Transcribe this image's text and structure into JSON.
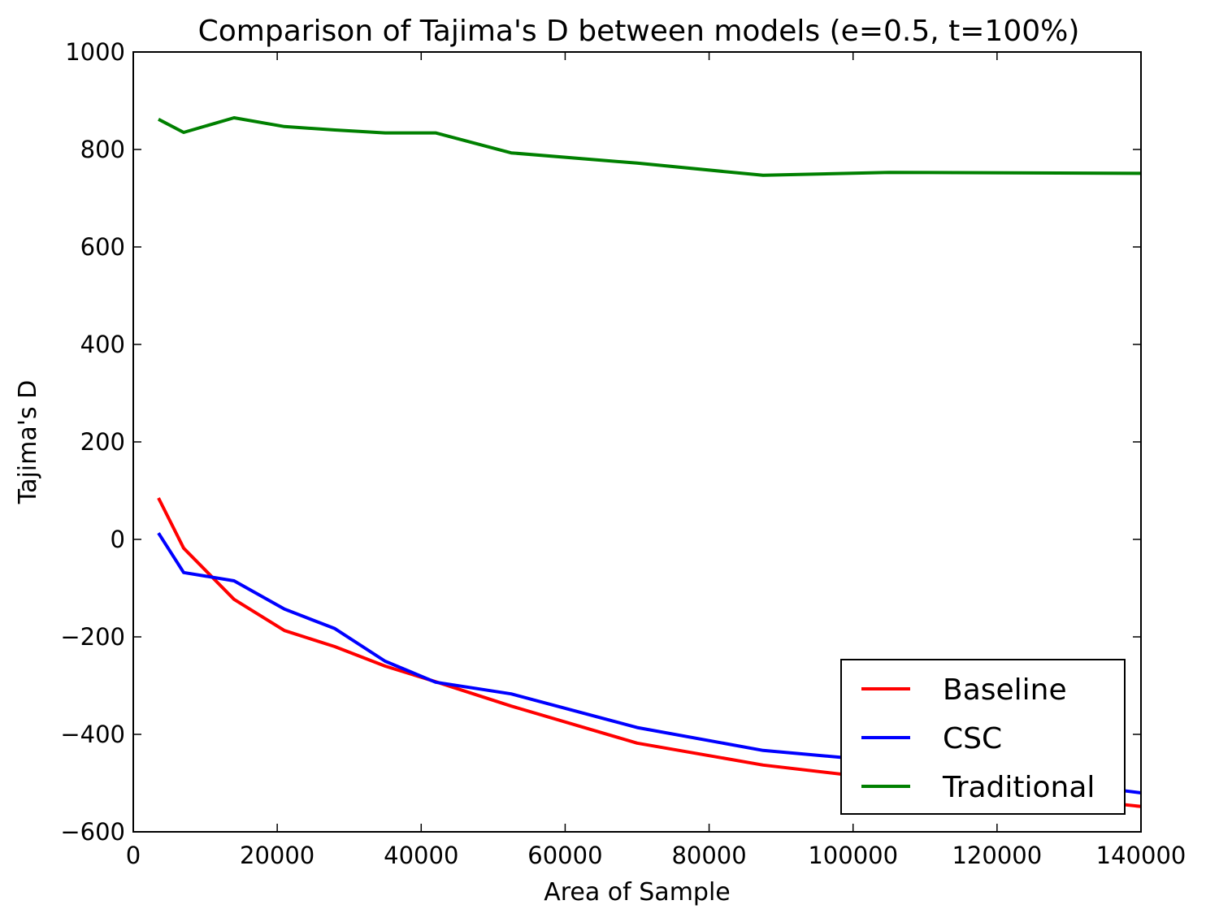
{
  "chart_data": {
    "type": "line",
    "title": "Comparison of Tajima's D between models (e=0.5, t=100%)",
    "xlabel": "Area of Sample",
    "ylabel": "Tajima's D",
    "xlim": [
      0,
      140000
    ],
    "ylim": [
      -600,
      1000
    ],
    "xticks": [
      0,
      20000,
      40000,
      60000,
      80000,
      100000,
      120000,
      140000
    ],
    "xtick_labels": [
      "0",
      "20000",
      "40000",
      "60000",
      "80000",
      "100000",
      "120000",
      "140000"
    ],
    "yticks": [
      -600,
      -400,
      -200,
      0,
      200,
      400,
      600,
      800,
      1000
    ],
    "ytick_labels": [
      "−600",
      "−400",
      "−200",
      "0",
      "200",
      "400",
      "600",
      "800",
      "1000"
    ],
    "grid": false,
    "legend_position": "lower-right",
    "series": [
      {
        "name": "Baseline",
        "color": "#ff0000",
        "x": [
          3500,
          7000,
          14000,
          21000,
          28000,
          35000,
          42000,
          52500,
          70000,
          87500,
          105000,
          140000
        ],
        "y": [
          85,
          -18,
          -123,
          -187,
          -220,
          -260,
          -292,
          -342,
          -418,
          -463,
          -493,
          -548
        ]
      },
      {
        "name": "CSC",
        "color": "#0000ff",
        "x": [
          3500,
          7000,
          14000,
          21000,
          28000,
          35000,
          42000,
          52500,
          70000,
          87500,
          105000,
          140000
        ],
        "y": [
          13,
          -68,
          -85,
          -143,
          -183,
          -250,
          -293,
          -317,
          -386,
          -433,
          -456,
          -520
        ]
      },
      {
        "name": "Traditional",
        "color": "#008000",
        "x": [
          3500,
          7000,
          14000,
          21000,
          28000,
          35000,
          42000,
          52500,
          70000,
          87500,
          105000,
          140000
        ],
        "y": [
          862,
          835,
          865,
          847,
          840,
          834,
          834,
          793,
          772,
          747,
          753,
          751
        ]
      }
    ]
  }
}
